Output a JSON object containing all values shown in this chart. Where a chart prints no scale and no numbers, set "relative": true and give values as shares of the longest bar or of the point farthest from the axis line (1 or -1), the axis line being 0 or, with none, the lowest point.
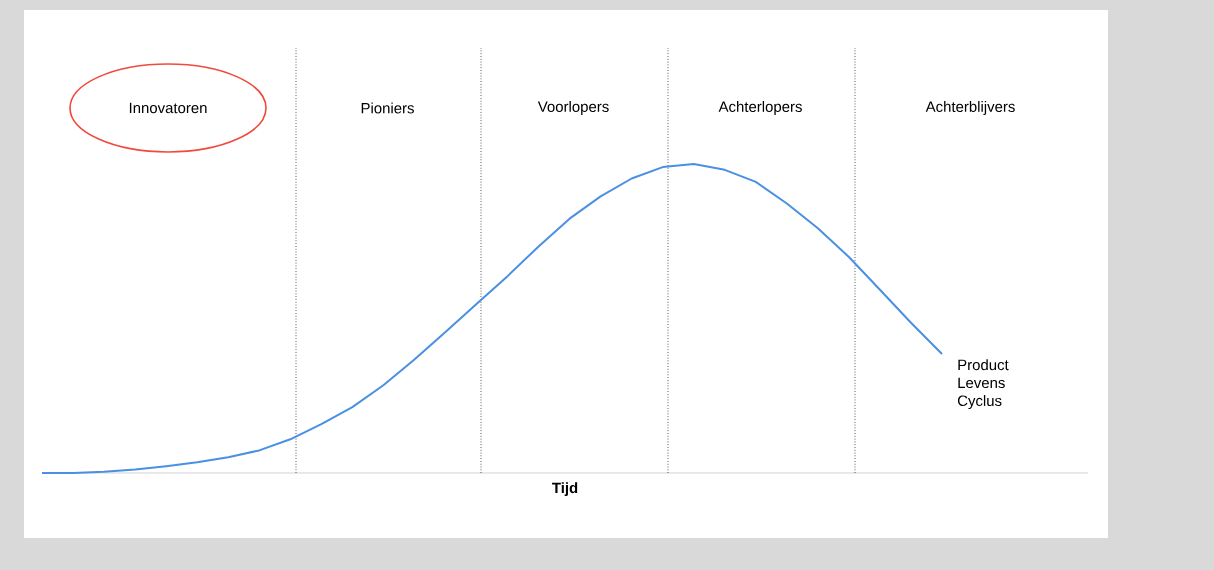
{
  "chart_data": {
    "type": "line",
    "relative": true,
    "xlabel": "Tijd",
    "tick_labels": false,
    "marker": "none",
    "line_style": "solid",
    "categories": [
      null,
      null,
      null,
      null,
      null,
      null,
      null,
      null,
      null,
      null,
      null,
      null,
      null,
      null,
      null,
      null,
      null,
      null,
      null,
      null,
      null,
      null,
      null,
      null,
      null,
      null,
      null,
      null,
      null,
      null
    ],
    "series": [
      {
        "name": "Product Levens Cyclus",
        "color": "#4a90e2",
        "values": [
          0,
          0,
          0.004,
          0.011,
          0.022,
          0.035,
          0.051,
          0.073,
          0.109,
          0.158,
          0.213,
          0.284,
          0.367,
          0.456,
          0.547,
          0.637,
          0.733,
          0.823,
          0.895,
          0.953,
          0.99,
          1,
          0.981,
          0.942,
          0.872,
          0.792,
          0.699,
          0.593,
          0.486,
          0.385
        ]
      }
    ],
    "annotations": [
      "Innovatoren",
      "Pioniers",
      "Voorlopers",
      "Achterlopers",
      "Achterblijvers"
    ]
  }
}
